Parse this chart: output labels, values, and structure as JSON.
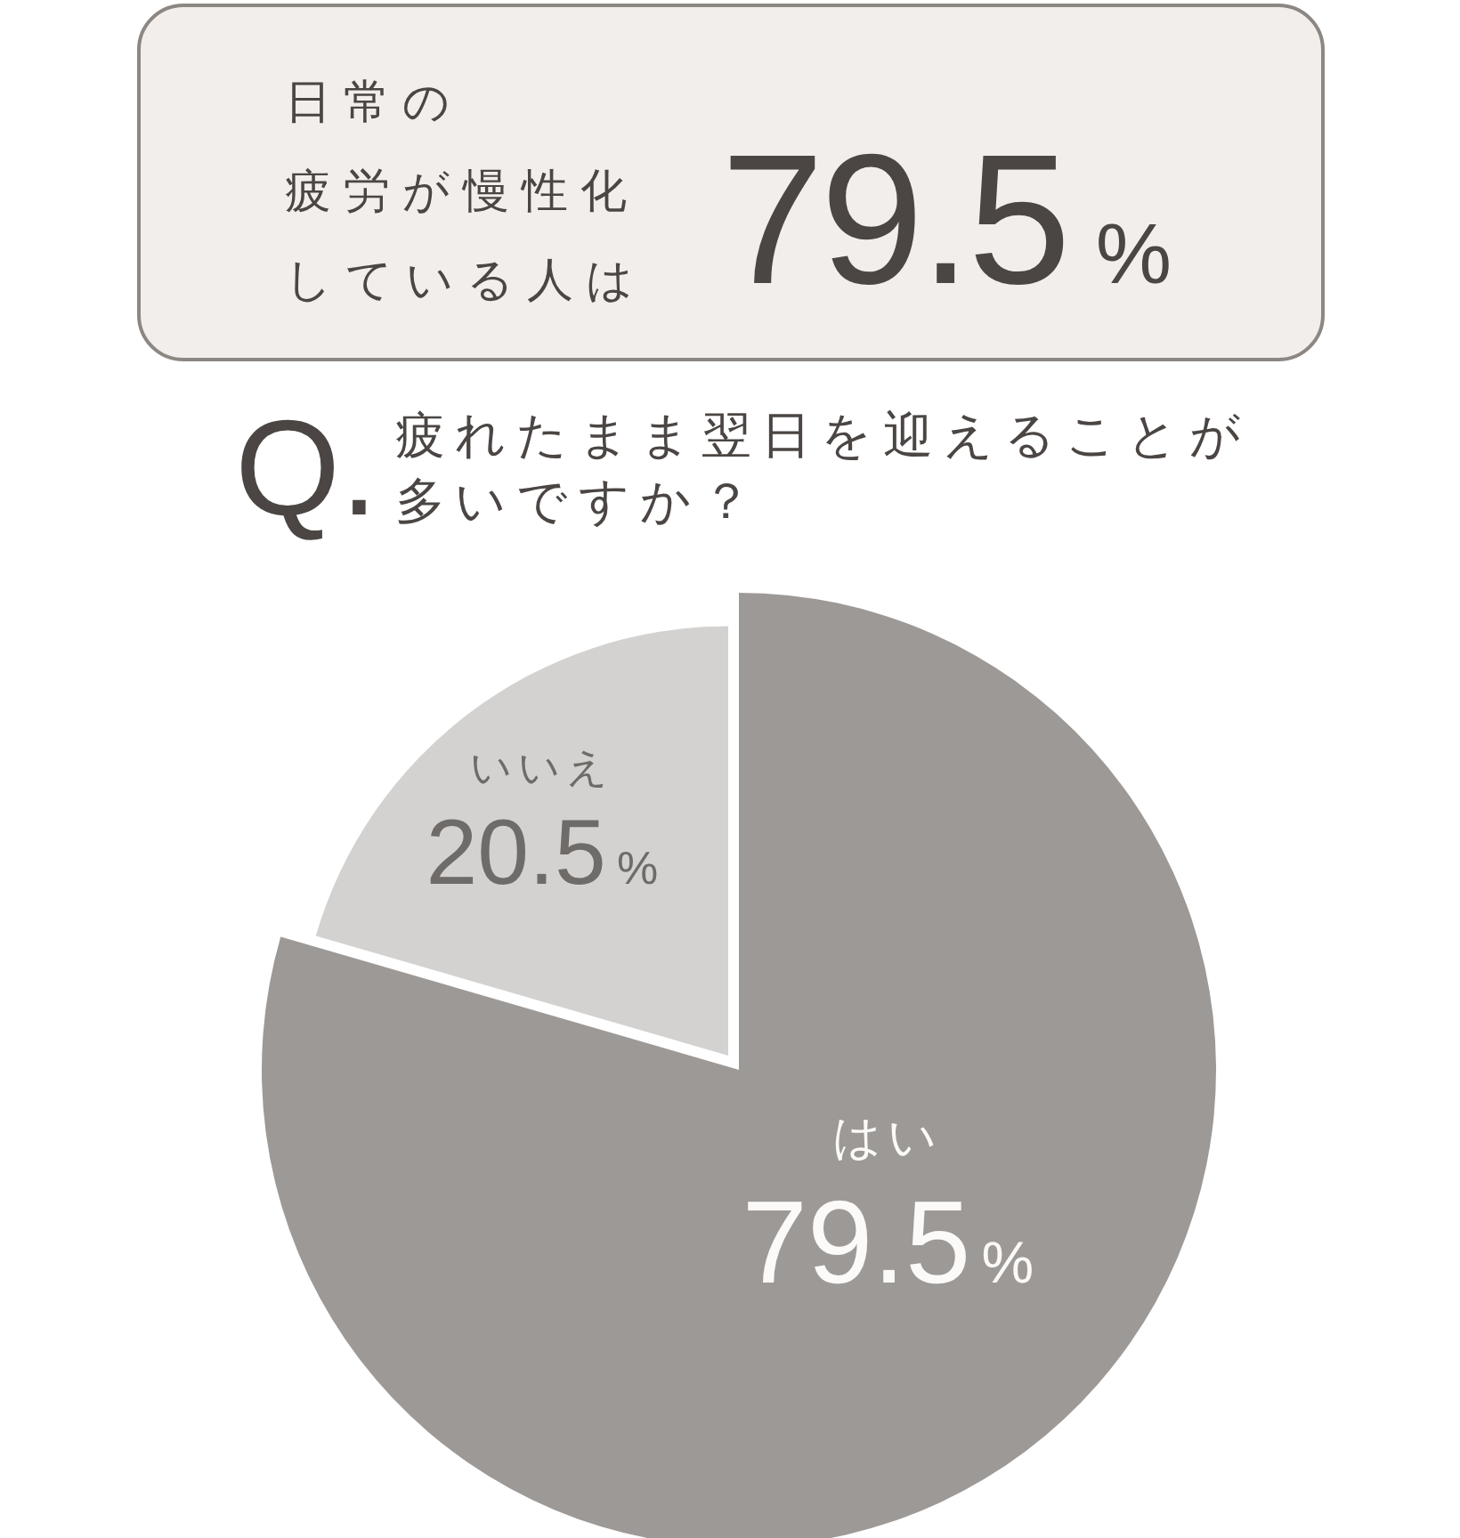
{
  "chart_data": {
    "type": "pie",
    "title": "Q.疲れたまま翌日を迎えることが多いですか？",
    "categories": [
      "はい",
      "いいえ"
    ],
    "values": [
      79.5,
      20.5
    ],
    "colors": [
      "#9d9996",
      "#d4d2d0"
    ],
    "value_labels": [
      "79.5%",
      "20.5%"
    ],
    "annotations": [
      "日常の",
      "疲労が慢性化",
      "している人は",
      "79.5%"
    ]
  }
}
